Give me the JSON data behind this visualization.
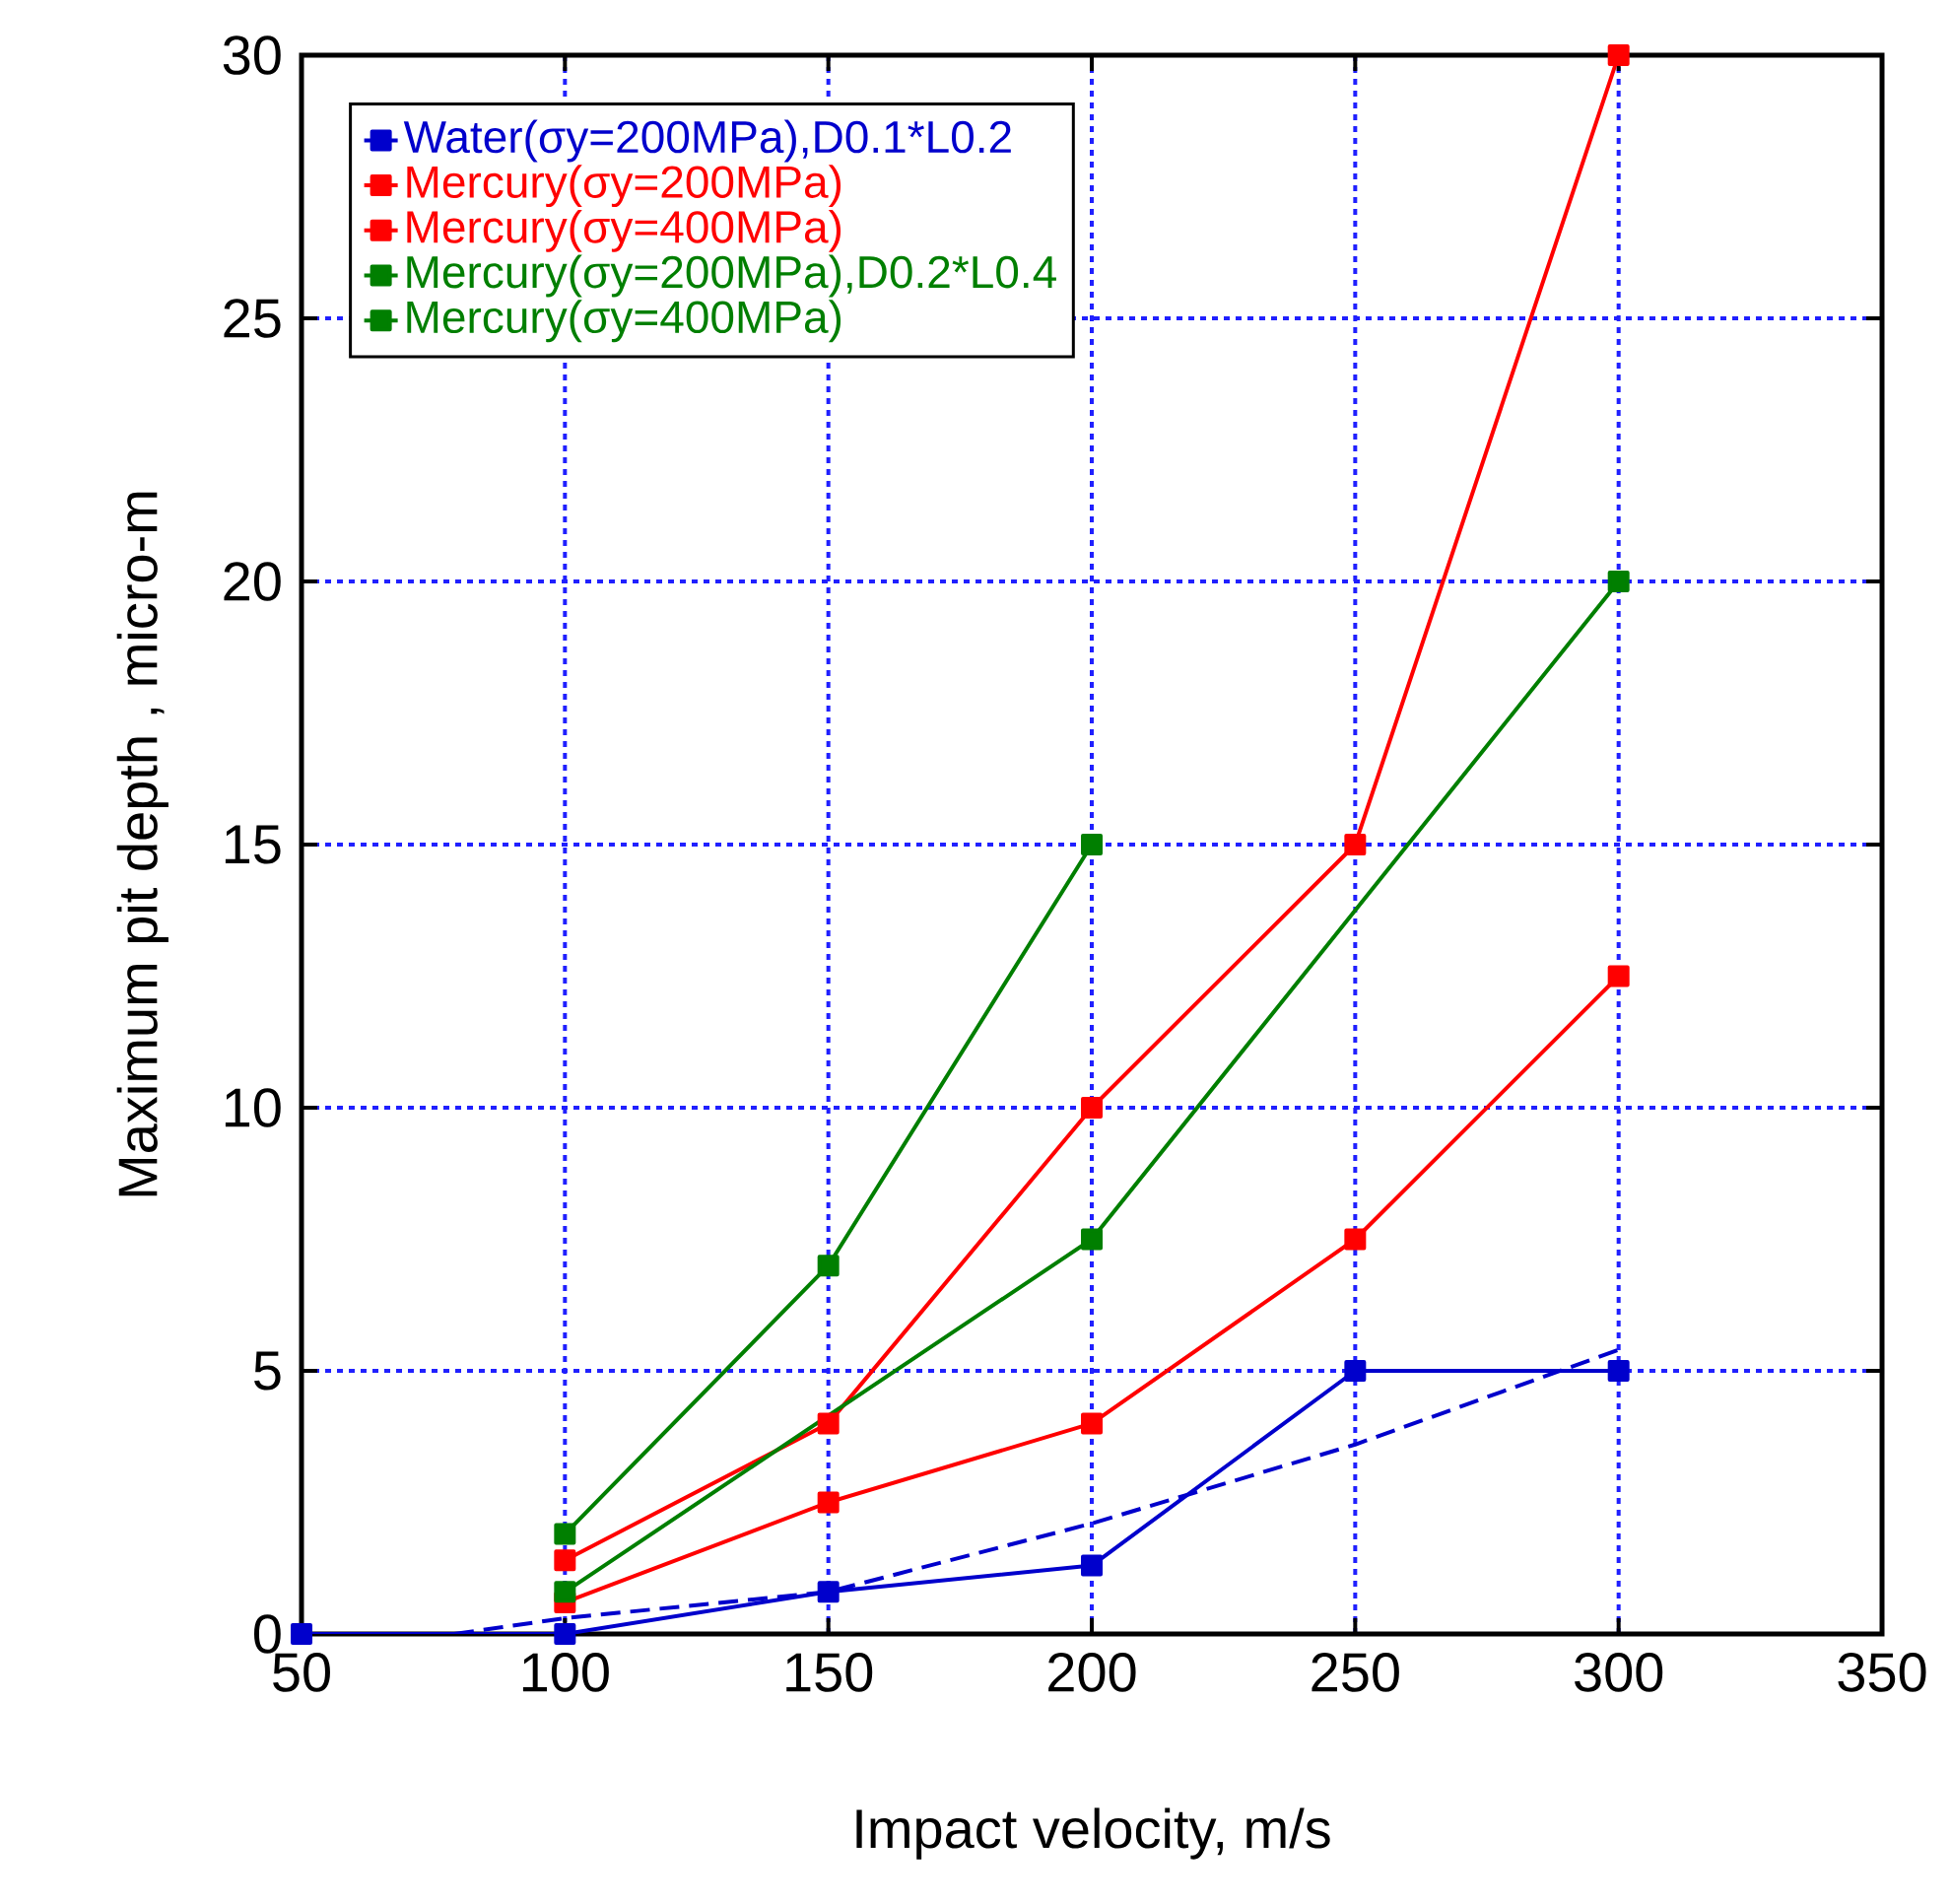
{
  "chart_data": {
    "type": "line",
    "xlabel": "Impact velocity, m/s",
    "ylabel": "Maximum pit depth , micro-m",
    "xlim": [
      50,
      350
    ],
    "xticks": [
      50,
      100,
      150,
      200,
      250,
      300,
      350
    ],
    "ylim": [
      0,
      30
    ],
    "yticks": [
      0,
      5,
      10,
      15,
      20,
      25,
      30
    ],
    "grid": true,
    "legend": "top left",
    "marker": "square",
    "series": [
      {
        "name": "Water(σy=200MPa),D0.1*L0.2",
        "color": "#0000cc",
        "x": [
          50,
          100,
          150,
          200,
          250,
          300
        ],
        "values": [
          0,
          0,
          0.8,
          1.3,
          5,
          5
        ]
      },
      {
        "name": "Mercury(σy=200MPa)",
        "color": "#ff0000",
        "x": [
          100,
          150,
          200,
          250,
          300
        ],
        "values": [
          1.4,
          4,
          10,
          15,
          30
        ]
      },
      {
        "name": "Mercury(σy=400MPa)",
        "color": "#ff0000",
        "x": [
          100,
          150,
          200,
          250,
          300
        ],
        "values": [
          0.6,
          2.5,
          4,
          7.5,
          12.5
        ]
      },
      {
        "name": "Mercury(σy=200MPa),D0.2*L0.4",
        "color": "#007f00",
        "x": [
          100,
          150,
          200
        ],
        "values": [
          1.9,
          7,
          15
        ]
      },
      {
        "name": "Mercury(σy=400MPa)",
        "color": "#007f00",
        "x": [
          100,
          200,
          300
        ],
        "values": [
          0.8,
          7.5,
          20
        ]
      },
      {
        "color": "#0000cc",
        "x": [
          79,
          100,
          150,
          200,
          250,
          300
        ],
        "values": [
          0,
          0.3,
          0.8,
          2.1,
          3.6,
          5.4
        ],
        "marker": "none",
        "line_style": "dashed"
      }
    ]
  }
}
